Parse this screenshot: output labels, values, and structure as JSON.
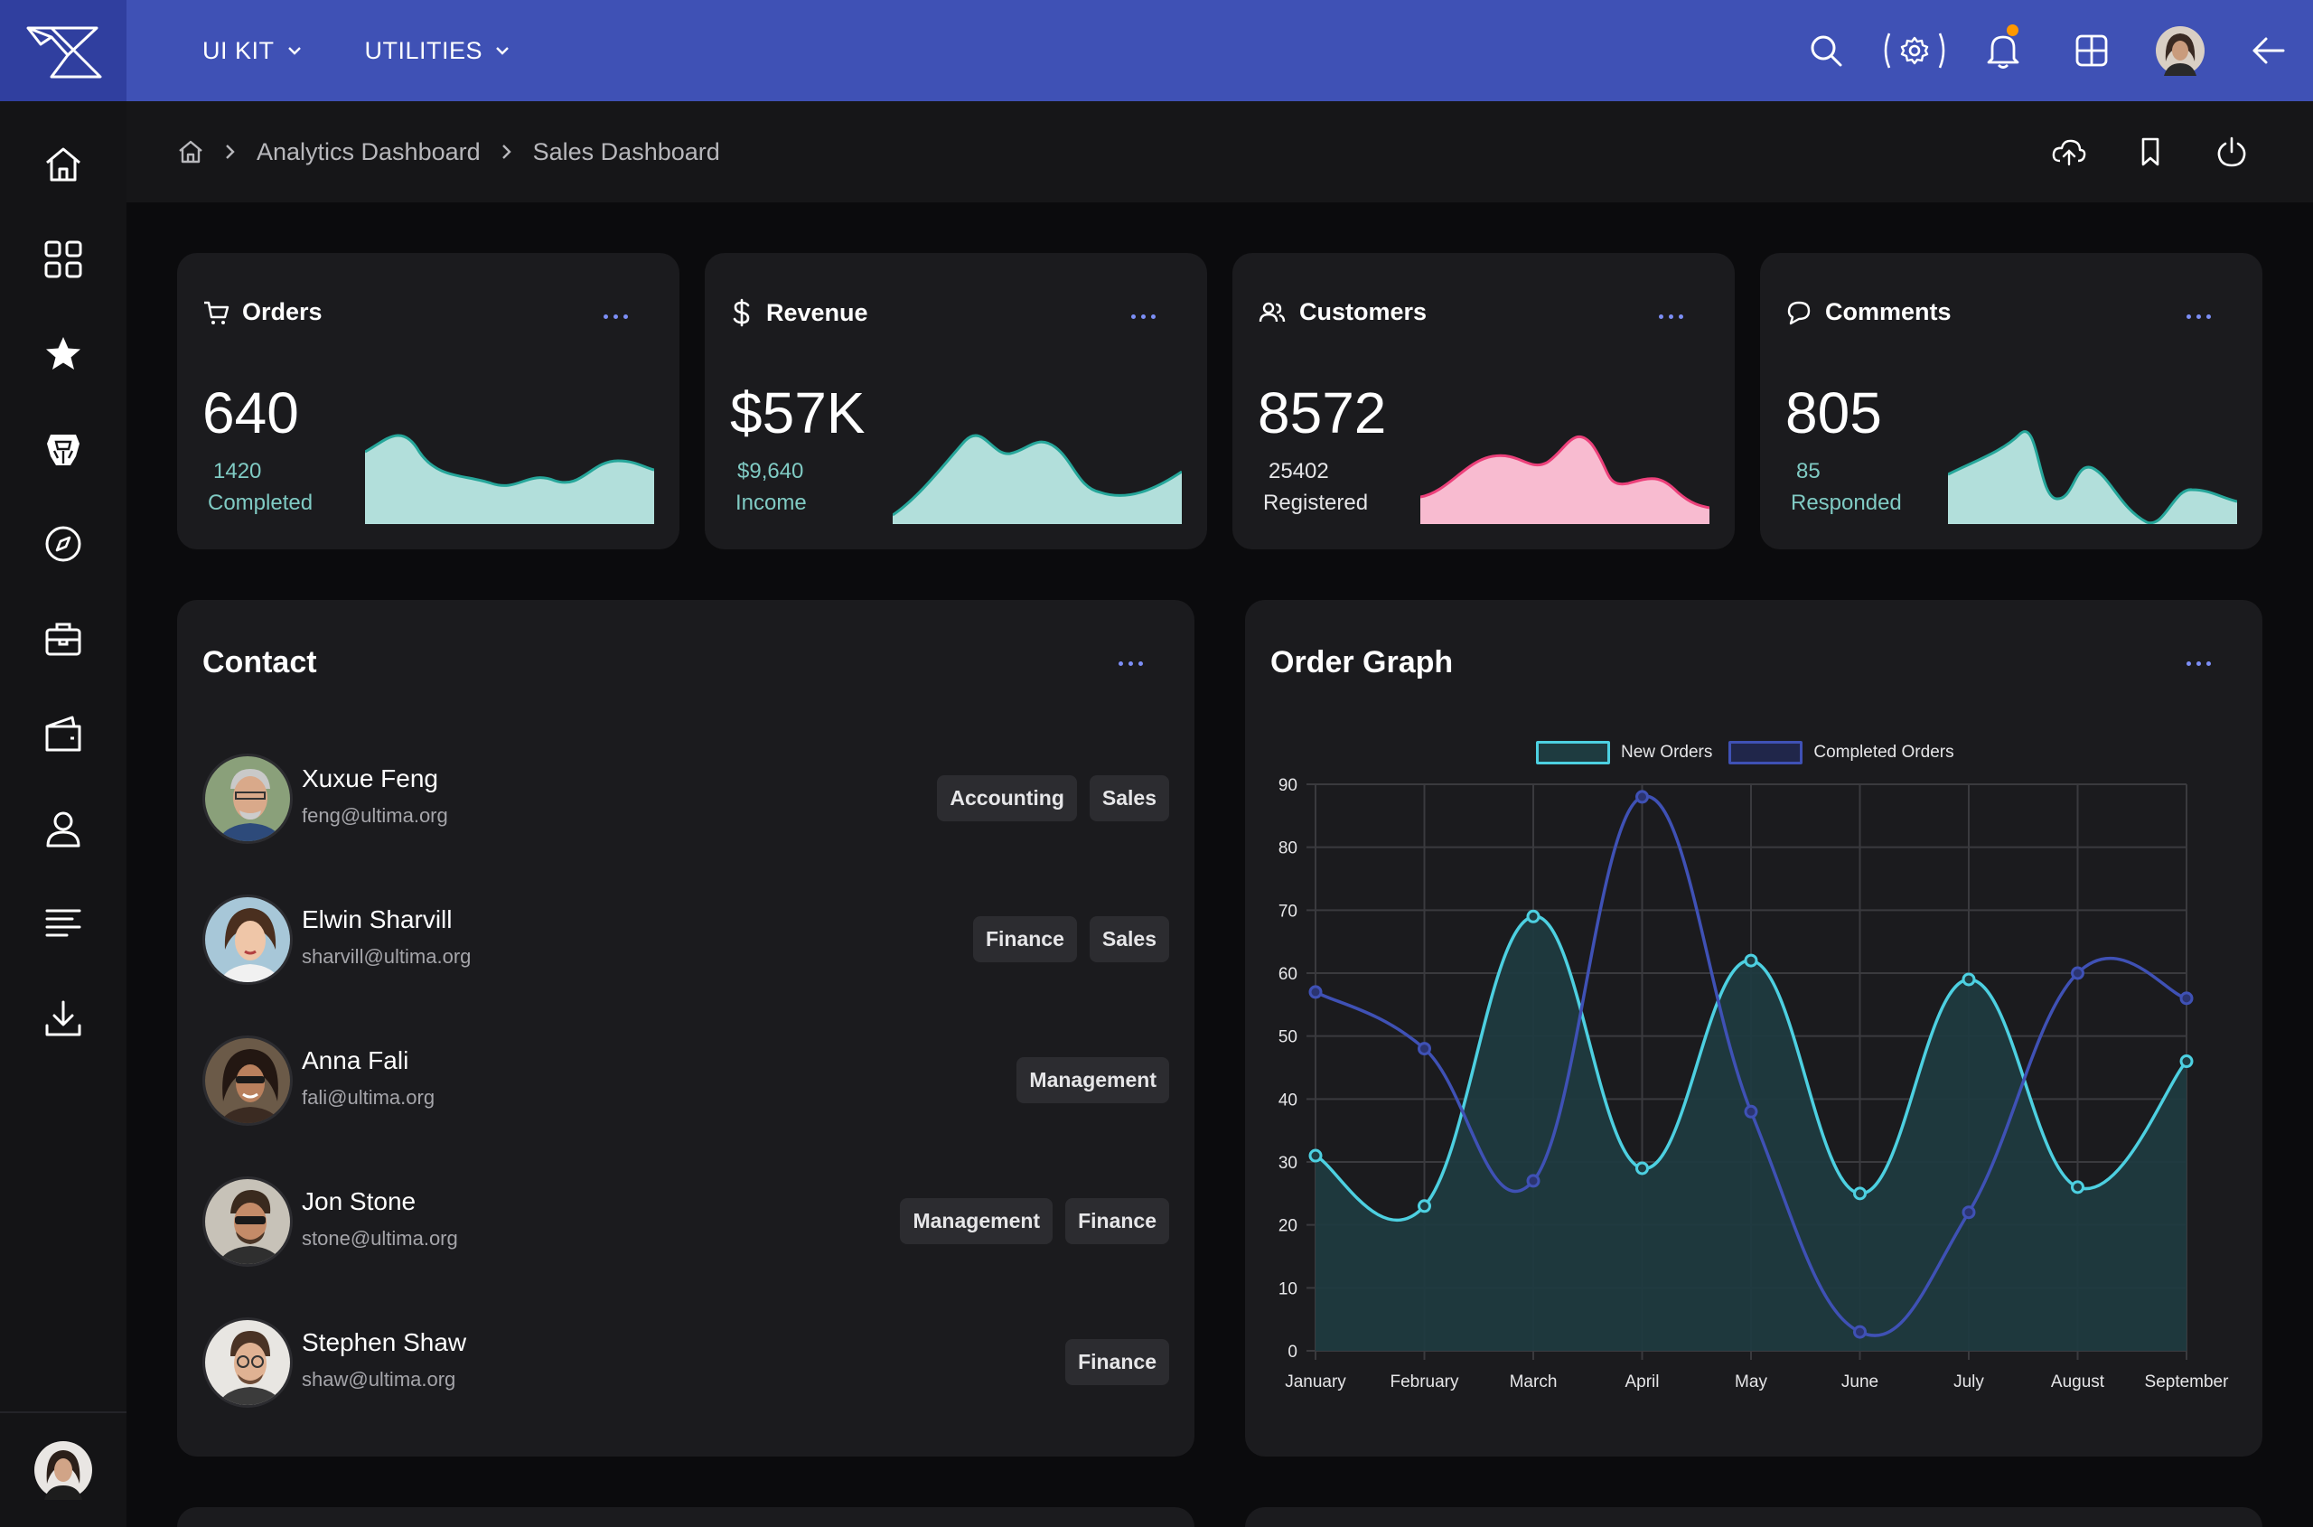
{
  "topbar": {
    "nav": [
      {
        "label": "UI KIT"
      },
      {
        "label": "UTILITIES"
      }
    ],
    "accent": "#3f51b5",
    "notification_dot_color": "#ff9800"
  },
  "breadcrumb": {
    "items": [
      "Analytics Dashboard",
      "Sales Dashboard"
    ]
  },
  "stats": [
    {
      "title": "Orders",
      "value": "640",
      "sub_number": "1420",
      "sub_label": "Completed",
      "icon": "cart-icon",
      "color": "teal"
    },
    {
      "title": "Revenue",
      "value": "$57K",
      "sub_number": "$9,640",
      "sub_label": "Income",
      "icon": "dollar-icon",
      "color": "teal"
    },
    {
      "title": "Customers",
      "value": "8572",
      "sub_number": "25402",
      "sub_label": "Registered",
      "icon": "users-icon",
      "color": "pink"
    },
    {
      "title": "Comments",
      "value": "805",
      "sub_number": "85",
      "sub_label": "Responded",
      "icon": "chat-icon",
      "color": "teal"
    }
  ],
  "contact": {
    "title": "Contact",
    "people": [
      {
        "name": "Xuxue Feng",
        "email": "feng@ultima.org",
        "tags": [
          "Accounting",
          "Sales"
        ]
      },
      {
        "name": "Elwin Sharvill",
        "email": "sharvill@ultima.org",
        "tags": [
          "Finance",
          "Sales"
        ]
      },
      {
        "name": "Anna Fali",
        "email": "fali@ultima.org",
        "tags": [
          "Management"
        ]
      },
      {
        "name": "Jon Stone",
        "email": "stone@ultima.org",
        "tags": [
          "Management",
          "Finance"
        ]
      },
      {
        "name": "Stephen Shaw",
        "email": "shaw@ultima.org",
        "tags": [
          "Finance"
        ]
      }
    ]
  },
  "order_graph": {
    "title": "Order Graph"
  },
  "chart_data": {
    "type": "line",
    "categories": [
      "January",
      "February",
      "March",
      "April",
      "May",
      "June",
      "July",
      "August",
      "September"
    ],
    "series": [
      {
        "name": "New Orders",
        "values": [
          31,
          23,
          69,
          29,
          62,
          25,
          59,
          26,
          46
        ],
        "color": "#4dd0e1",
        "filled": true
      },
      {
        "name": "Completed Orders",
        "values": [
          57,
          48,
          27,
          88,
          38,
          3,
          22,
          60,
          56
        ],
        "color": "#3f51b5",
        "filled": false
      }
    ],
    "ylim": [
      0,
      90
    ],
    "yticks": [
      0,
      10,
      20,
      30,
      40,
      50,
      60,
      70,
      80,
      90
    ],
    "grid": true,
    "legend": "top-center",
    "smooth": true
  },
  "colors": {
    "teal_fill": "#b2dfdb",
    "teal_line": "#26a69a",
    "pink_fill": "#f8bbd0",
    "pink_line": "#ec407a",
    "sub_teal": "#80cbc4",
    "card_bg": "#1b1b1e"
  }
}
